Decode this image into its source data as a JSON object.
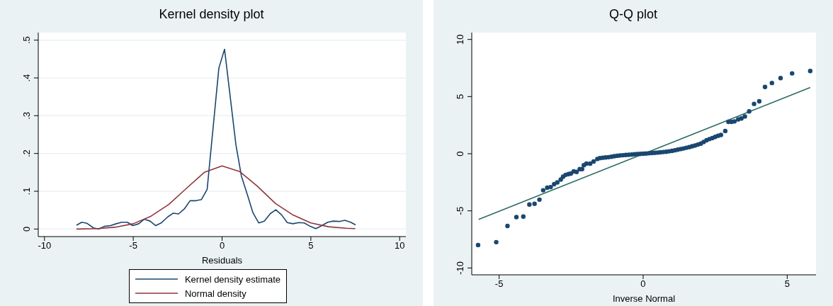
{
  "chart_data": [
    {
      "type": "line",
      "title": "Kernel density plot",
      "xlabel": "Residuals",
      "xlim": [
        -10.35,
        10.35
      ],
      "xticks": [
        -10,
        -5,
        0,
        5,
        10
      ],
      "ylim": [
        -0.02,
        0.52
      ],
      "yticks": [
        0,
        {
          "value": 0.1,
          "label": ".1"
        },
        {
          "value": 0.2,
          "label": ".2"
        },
        {
          "value": 0.3,
          "label": ".3"
        },
        {
          "value": 0.4,
          "label": ".4"
        },
        {
          "value": 0.5,
          "label": ".5"
        }
      ],
      "grid": "y",
      "legend": "bottom",
      "series": [
        {
          "name": "Kernel density estimate",
          "color": "#1a476f",
          "x": [
            -8.2,
            -7.9,
            -7.6,
            -7.24,
            -6.94,
            -6.64,
            -6.29,
            -5.96,
            -5.65,
            -5.33,
            -5.03,
            -4.69,
            -4.38,
            -4.05,
            -3.74,
            -3.43,
            -3.06,
            -2.75,
            -2.45,
            -2.11,
            -1.8,
            -1.47,
            -1.16,
            -0.84,
            -0.18,
            0.14,
            0.78,
            1.09,
            1.43,
            1.74,
            2.07,
            2.38,
            2.72,
            3.03,
            3.36,
            3.67,
            3.99,
            4.31,
            4.63,
            4.97,
            5.28,
            5.62,
            5.95,
            6.26,
            6.6,
            6.91,
            7.24,
            7.52
          ],
          "values": [
            0.01,
            0.018,
            0.015,
            0.003,
            0,
            0.007,
            0.009,
            0.014,
            0.018,
            0.018,
            0.009,
            0.014,
            0.026,
            0.021,
            0.009,
            0.016,
            0.032,
            0.042,
            0.04,
            0.054,
            0.075,
            0.075,
            0.078,
            0.105,
            0.426,
            0.476,
            0.223,
            0.14,
            0.09,
            0.043,
            0.016,
            0.021,
            0.041,
            0.051,
            0.037,
            0.017,
            0.014,
            0.017,
            0.016,
            0.007,
            0.001,
            0.009,
            0.018,
            0.021,
            0.02,
            0.023,
            0.018,
            0.011
          ]
        },
        {
          "name": "Normal density",
          "color": "#90353b",
          "x": [
            -8.2,
            -7,
            -6,
            -5,
            -4,
            -3,
            -2,
            -1,
            0,
            1,
            2,
            3,
            4,
            5,
            6,
            7,
            7.5
          ],
          "values": [
            0,
            0.001,
            0.005,
            0.014,
            0.034,
            0.065,
            0.108,
            0.15,
            0.167,
            0.152,
            0.113,
            0.068,
            0.037,
            0.016,
            0.006,
            0.002,
            0.001
          ]
        }
      ]
    },
    {
      "type": "scatter",
      "title": "Q-Q plot",
      "xlabel": "Inverse Normal",
      "xlim": [
        -5.95,
        6
      ],
      "xticks": [
        -5,
        0,
        5
      ],
      "ylim": [
        -10.6,
        10.6
      ],
      "yticks": [
        -10,
        -5,
        0,
        5,
        10
      ],
      "grid": false,
      "series": [
        {
          "marker": "circle",
          "color": "#1a476f",
          "x": [
            -5.73,
            -5.1,
            -4.71,
            -4.4,
            -4.16,
            -3.95,
            -3.77,
            -3.6,
            -3.47,
            -3.33,
            -3.21,
            -3.09,
            -2.98,
            -2.86,
            -2.78,
            -2.69,
            -2.59,
            -2.51,
            -2.41,
            -2.31,
            -2.2,
            -2.12,
            -2.06,
            -1.97,
            -1.84,
            -1.72,
            -1.59,
            -1.5,
            -1.4,
            -1.3,
            -1.2,
            -1.1,
            -1,
            -0.9,
            -0.8,
            -0.7,
            -0.6,
            -0.5,
            -0.4,
            -0.3,
            -0.2,
            -0.1,
            0,
            0.1,
            0.2,
            0.3,
            0.4,
            0.5,
            0.6,
            0.7,
            0.8,
            0.9,
            1,
            1.1,
            1.2,
            1.3,
            1.4,
            1.5,
            1.6,
            1.7,
            1.8,
            1.9,
            2,
            2.1,
            2.2,
            2.3,
            2.4,
            2.5,
            2.6,
            2.7,
            2.85,
            2.96,
            3.07,
            3.17,
            3.3,
            3.41,
            3.53,
            3.68,
            3.85,
            4.03,
            4.23,
            4.47,
            4.77,
            5.17,
            5.8
          ],
          "values": [
            -7.99,
            -7.74,
            -6.32,
            -5.55,
            -5.5,
            -4.45,
            -4.38,
            -4.02,
            -3.2,
            -2.97,
            -2.92,
            -2.67,
            -2.51,
            -2.26,
            -2.01,
            -1.85,
            -1.78,
            -1.74,
            -1.55,
            -1.6,
            -1.35,
            -1.35,
            -1,
            -0.87,
            -0.87,
            -0.68,
            -0.46,
            -0.38,
            -0.35,
            -0.33,
            -0.3,
            -0.26,
            -0.22,
            -0.18,
            -0.15,
            -0.13,
            -0.11,
            -0.09,
            -0.07,
            -0.05,
            -0.03,
            -0.02,
            0,
            0.02,
            0.04,
            0.06,
            0.08,
            0.1,
            0.12,
            0.15,
            0.17,
            0.21,
            0.25,
            0.3,
            0.36,
            0.41,
            0.46,
            0.52,
            0.58,
            0.65,
            0.72,
            0.8,
            0.88,
            1.03,
            1.18,
            1.28,
            1.37,
            1.47,
            1.57,
            1.64,
            1.99,
            2.79,
            2.79,
            2.83,
            3.01,
            3.08,
            3.26,
            3.7,
            4.36,
            4.59,
            5.84,
            6.19,
            6.62,
            7.03,
            7.24
          ]
        },
        {
          "type": "line",
          "color": "#2d6d66",
          "x": [
            -5.71,
            5.8
          ],
          "values": [
            -5.75,
            5.8
          ]
        }
      ]
    }
  ]
}
